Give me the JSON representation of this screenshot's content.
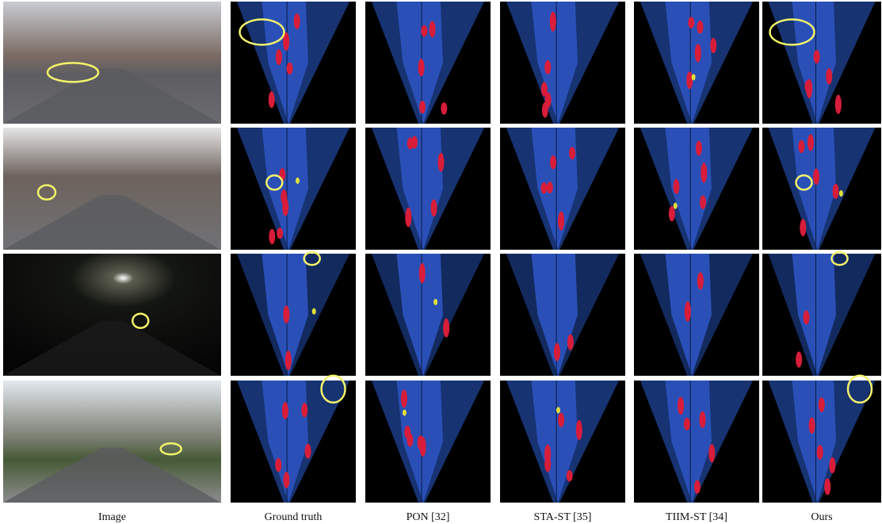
{
  "columns": [
    "Image",
    "Ground truth",
    "PON [32]",
    "STA-ST [35]",
    "TIIM-ST [34]",
    "Ours"
  ]
}
